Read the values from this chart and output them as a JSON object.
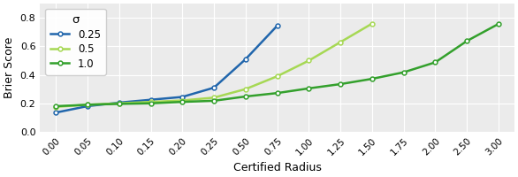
{
  "sigma_labels": [
    "0.25",
    "0.5",
    "1.0"
  ],
  "colors": [
    "#2166ac",
    "#a6d854",
    "#33a02c"
  ],
  "x_ticks_values": [
    0.0,
    0.05,
    0.1,
    0.15,
    0.2,
    0.25,
    0.5,
    0.75,
    1.0,
    1.25,
    1.5,
    1.75,
    2.0,
    2.5,
    3.0
  ],
  "x_tick_labels": [
    "0.00",
    "0.05",
    "0.10",
    "0.15",
    "0.20",
    "0.25",
    "0.50",
    "0.75",
    "1.00",
    "1.25",
    "1.50",
    "1.75",
    "2.00",
    "2.50",
    "3.00"
  ],
  "series": [
    {
      "sigma": "0.25",
      "color": "#2166ac",
      "x_indices": [
        0,
        1,
        2,
        3,
        4,
        5,
        6,
        7
      ],
      "y": [
        0.135,
        0.18,
        0.205,
        0.225,
        0.245,
        0.31,
        0.51,
        0.745
      ]
    },
    {
      "sigma": "0.5",
      "color": "#a6d854",
      "x_indices": [
        0,
        1,
        2,
        3,
        4,
        5,
        6,
        7,
        8,
        9,
        10
      ],
      "y": [
        0.175,
        0.19,
        0.2,
        0.21,
        0.22,
        0.24,
        0.3,
        0.39,
        0.5,
        0.63,
        0.76
      ]
    },
    {
      "sigma": "1.0",
      "color": "#33a02c",
      "x_indices": [
        0,
        1,
        2,
        3,
        4,
        5,
        6,
        7,
        8,
        9,
        10,
        11,
        12,
        13,
        14
      ],
      "y": [
        0.18,
        0.19,
        0.196,
        0.2,
        0.21,
        0.218,
        0.248,
        0.272,
        0.305,
        0.335,
        0.372,
        0.418,
        0.488,
        0.638,
        0.758
      ]
    }
  ],
  "ylabel": "Brier Score",
  "xlabel": "Certified Radius",
  "legend_title": "σ",
  "ylim": [
    0.0,
    0.9
  ],
  "yticks": [
    0.0,
    0.2,
    0.4,
    0.6,
    0.8
  ],
  "background_color": "#ebebeb",
  "grid_color": "white",
  "figsize": [
    5.86,
    2.0
  ],
  "dpi": 100
}
